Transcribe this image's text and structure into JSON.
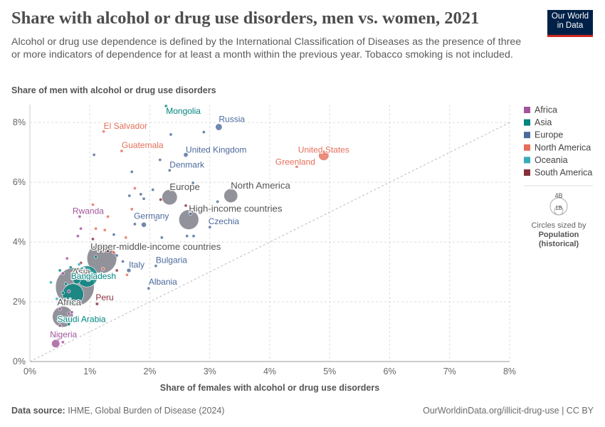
{
  "header": {
    "title": "Share with alcohol or drug use disorders, men vs. women, 2021",
    "subtitle": "Alcohol or drug use dependence is defined by the International Classification of Diseases as the presence of three or more indicators of dependence for at least a month within the previous year. Tobacco smoking is not included.",
    "logo_line1": "Our World",
    "logo_line2": "in Data"
  },
  "footer": {
    "source_label": "Data source:",
    "source_text": "IHME, Global Burden of Disease (2024)",
    "url_text": "OurWorldinData.org/illicit-drug-use | CC BY"
  },
  "size_legend": {
    "big_label": "4B",
    "small_label": "1B",
    "caption": "Circles sized by",
    "variable_line1": "Population",
    "variable_line2": "(historical)"
  },
  "chart_data": {
    "type": "scatter",
    "xlabel": "Share of females with alcohol or drug use disorders",
    "ylabel": "Share of men with alcohol or drug use disorders",
    "xlim": [
      0,
      8
    ],
    "ylim": [
      0,
      8.6
    ],
    "x_ticks": [
      0,
      1,
      2,
      3,
      4,
      5,
      6,
      7,
      8
    ],
    "x_tick_labels": [
      "0%",
      "1%",
      "2%",
      "3%",
      "4%",
      "5%",
      "6%",
      "7%",
      "8%"
    ],
    "y_ticks": [
      0,
      2,
      4,
      6,
      8
    ],
    "y_tick_labels": [
      "0%",
      "2%",
      "4%",
      "6%",
      "8%"
    ],
    "grid": true,
    "diagonal_reference_line": true,
    "legend_position": "right",
    "legend": [
      {
        "name": "Africa",
        "color": "#a2559c"
      },
      {
        "name": "Asia",
        "color": "#00847e"
      },
      {
        "name": "Europe",
        "color": "#4c6a9c"
      },
      {
        "name": "North America",
        "color": "#e56e5a"
      },
      {
        "name": "Oceania",
        "color": "#38aaba"
      },
      {
        "name": "South America",
        "color": "#883039"
      }
    ],
    "aggregate_color": "#6d6d78",
    "points": [
      {
        "label": "Mongolia",
        "region": "Asia",
        "x": 2.27,
        "y": 8.55,
        "pop": 0.0034,
        "labeled": true
      },
      {
        "label": "Russia",
        "region": "Europe",
        "x": 3.15,
        "y": 7.85,
        "pop": 0.145,
        "labeled": true
      },
      {
        "label": "El Salvador",
        "region": "North America",
        "x": 1.23,
        "y": 7.7,
        "pop": 0.0063,
        "labeled": true
      },
      {
        "label": "Guatemala",
        "region": "North America",
        "x": 1.53,
        "y": 7.05,
        "pop": 0.018,
        "labeled": true
      },
      {
        "label": "United Kingdom",
        "region": "Europe",
        "x": 2.6,
        "y": 6.92,
        "pop": 0.067,
        "labeled": true
      },
      {
        "label": "United States",
        "region": "North America",
        "x": 4.9,
        "y": 6.9,
        "pop": 0.336,
        "labeled": true
      },
      {
        "label": "Greenland",
        "region": "North America",
        "x": 4.45,
        "y": 6.52,
        "pop": 6e-05,
        "labeled": true
      },
      {
        "label": "Denmark",
        "region": "Europe",
        "x": 2.33,
        "y": 6.4,
        "pop": 0.0059,
        "labeled": true
      },
      {
        "label": "Europe",
        "region": "aggregate",
        "x": 2.33,
        "y": 5.5,
        "pop": 0.745,
        "labeled": true
      },
      {
        "label": "North America",
        "region": "aggregate",
        "x": 3.35,
        "y": 5.55,
        "pop": 0.6,
        "labeled": true
      },
      {
        "label": "Rwanda",
        "region": "Africa",
        "x": 0.83,
        "y": 4.85,
        "pop": 0.0136,
        "labeled": true
      },
      {
        "label": "High-income countries",
        "region": "aggregate",
        "x": 2.65,
        "y": 4.75,
        "pop": 1.24,
        "labeled": true
      },
      {
        "label": "Germany",
        "region": "Europe",
        "x": 1.9,
        "y": 4.58,
        "pop": 0.083,
        "labeled": true
      },
      {
        "label": "Czechia",
        "region": "Europe",
        "x": 3.0,
        "y": 4.5,
        "pop": 0.0105,
        "labeled": true
      },
      {
        "label": "Upper-middle-income countries",
        "region": "aggregate",
        "x": 1.2,
        "y": 3.45,
        "pop": 2.8,
        "labeled": true
      },
      {
        "label": "Bulgaria",
        "region": "Europe",
        "x": 2.1,
        "y": 3.2,
        "pop": 0.0068,
        "labeled": true
      },
      {
        "label": "Italy",
        "region": "Europe",
        "x": 1.65,
        "y": 3.05,
        "pop": 0.059,
        "labeled": true
      },
      {
        "label": "Albania",
        "region": "Europe",
        "x": 1.98,
        "y": 2.45,
        "pop": 0.0028,
        "labeled": true
      },
      {
        "label": "Asia",
        "region": "aggregate",
        "x": 0.75,
        "y": 2.5,
        "pop": 4.69,
        "labeled": true
      },
      {
        "label": "Bangladesh",
        "region": "Asia",
        "x": 0.78,
        "y": 2.72,
        "pop": 0.169,
        "labeled": true
      },
      {
        "label": "Peru",
        "region": "South America",
        "x": 1.12,
        "y": 1.93,
        "pop": 0.034,
        "labeled": true
      },
      {
        "label": "Africa",
        "region": "aggregate",
        "x": 0.55,
        "y": 1.5,
        "pop": 1.39,
        "labeled": true
      },
      {
        "label": "Saudi Arabia",
        "region": "Asia",
        "x": 0.6,
        "y": 1.35,
        "pop": 0.036,
        "labeled": true
      },
      {
        "label": "Nigeria",
        "region": "Africa",
        "x": 0.43,
        "y": 0.6,
        "pop": 0.213,
        "labeled": true
      },
      {
        "label": "India",
        "region": "Asia",
        "x": 0.72,
        "y": 2.25,
        "pop": 1.41,
        "labeled": false
      },
      {
        "label": "China",
        "region": "Asia",
        "x": 0.95,
        "y": 2.85,
        "pop": 1.42,
        "labeled": false
      },
      {
        "label": "",
        "region": "Europe",
        "x": 2.35,
        "y": 7.6,
        "pop": 0.01,
        "labeled": false
      },
      {
        "label": "",
        "region": "Europe",
        "x": 2.9,
        "y": 7.68,
        "pop": 0.01,
        "labeled": false
      },
      {
        "label": "",
        "region": "Europe",
        "x": 1.07,
        "y": 6.92,
        "pop": 0.01,
        "labeled": false
      },
      {
        "label": "",
        "region": "Europe",
        "x": 2.17,
        "y": 6.75,
        "pop": 0.01,
        "labeled": false
      },
      {
        "label": "",
        "region": "Europe",
        "x": 1.7,
        "y": 6.35,
        "pop": 0.01,
        "labeled": false
      },
      {
        "label": "",
        "region": "Europe",
        "x": 2.72,
        "y": 5.98,
        "pop": 0.01,
        "labeled": false
      },
      {
        "label": "",
        "region": "Europe",
        "x": 2.05,
        "y": 5.75,
        "pop": 0.01,
        "labeled": false
      },
      {
        "label": "",
        "region": "Europe",
        "x": 1.85,
        "y": 5.6,
        "pop": 0.01,
        "labeled": false
      },
      {
        "label": "",
        "region": "Europe",
        "x": 1.9,
        "y": 5.45,
        "pop": 0.01,
        "labeled": false
      },
      {
        "label": "",
        "region": "Europe",
        "x": 1.66,
        "y": 5.55,
        "pop": 0.01,
        "labeled": false
      },
      {
        "label": "",
        "region": "South America",
        "x": 2.18,
        "y": 5.42,
        "pop": 0.01,
        "labeled": false
      },
      {
        "label": "",
        "region": "Europe",
        "x": 3.13,
        "y": 5.35,
        "pop": 0.01,
        "labeled": false
      },
      {
        "label": "",
        "region": "South America",
        "x": 2.6,
        "y": 5.22,
        "pop": 0.01,
        "labeled": false
      },
      {
        "label": "",
        "region": "Europe",
        "x": 2.68,
        "y": 4.95,
        "pop": 0.01,
        "labeled": false
      },
      {
        "label": "",
        "region": "Europe",
        "x": 1.75,
        "y": 4.6,
        "pop": 0.01,
        "labeled": false
      },
      {
        "label": "",
        "region": "Europe",
        "x": 2.1,
        "y": 4.75,
        "pop": 0.01,
        "labeled": false
      },
      {
        "label": "",
        "region": "Europe",
        "x": 2.73,
        "y": 4.2,
        "pop": 0.01,
        "labeled": false
      },
      {
        "label": "",
        "region": "Europe",
        "x": 2.62,
        "y": 4.2,
        "pop": 0.01,
        "labeled": false
      },
      {
        "label": "",
        "region": "Europe",
        "x": 2.2,
        "y": 4.15,
        "pop": 0.01,
        "labeled": false
      },
      {
        "label": "",
        "region": "Europe",
        "x": 1.4,
        "y": 4.25,
        "pop": 0.01,
        "labeled": false
      },
      {
        "label": "",
        "region": "Europe",
        "x": 1.45,
        "y": 3.55,
        "pop": 0.01,
        "labeled": false
      },
      {
        "label": "",
        "region": "Europe",
        "x": 1.55,
        "y": 3.35,
        "pop": 0.01,
        "labeled": false
      },
      {
        "label": "",
        "region": "Europe",
        "x": 2.03,
        "y": 2.75,
        "pop": 0.01,
        "labeled": false
      },
      {
        "label": "",
        "region": "North America",
        "x": 1.75,
        "y": 5.8,
        "pop": 0.005,
        "labeled": false
      },
      {
        "label": "",
        "region": "North America",
        "x": 1.7,
        "y": 5.1,
        "pop": 0.005,
        "labeled": false
      },
      {
        "label": "",
        "region": "North America",
        "x": 1.3,
        "y": 4.85,
        "pop": 0.005,
        "labeled": false
      },
      {
        "label": "",
        "region": "North America",
        "x": 1.1,
        "y": 4.45,
        "pop": 0.005,
        "labeled": false
      },
      {
        "label": "",
        "region": "North America",
        "x": 1.25,
        "y": 4.4,
        "pop": 0.005,
        "labeled": false
      },
      {
        "label": "",
        "region": "North America",
        "x": 1.05,
        "y": 5.25,
        "pop": 0.005,
        "labeled": false
      },
      {
        "label": "",
        "region": "North America",
        "x": 1.6,
        "y": 4.15,
        "pop": 0.005,
        "labeled": false
      },
      {
        "label": "",
        "region": "North America",
        "x": 1.4,
        "y": 3.65,
        "pop": 0.005,
        "labeled": false
      },
      {
        "label": "",
        "region": "North America",
        "x": 1.62,
        "y": 2.9,
        "pop": 0.005,
        "labeled": false
      },
      {
        "label": "",
        "region": "North America",
        "x": 1.22,
        "y": 3.1,
        "pop": 0.005,
        "labeled": false
      },
      {
        "label": "",
        "region": "South America",
        "x": 1.05,
        "y": 4.1,
        "pop": 0.01,
        "labeled": false
      },
      {
        "label": "",
        "region": "South America",
        "x": 1.3,
        "y": 3.7,
        "pop": 0.01,
        "labeled": false
      },
      {
        "label": "",
        "region": "South America",
        "x": 1.45,
        "y": 3.05,
        "pop": 0.01,
        "labeled": false
      },
      {
        "label": "",
        "region": "South America",
        "x": 0.85,
        "y": 3.3,
        "pop": 0.01,
        "labeled": false
      },
      {
        "label": "",
        "region": "Africa",
        "x": 0.85,
        "y": 4.45,
        "pop": 0.01,
        "labeled": false
      },
      {
        "label": "",
        "region": "Africa",
        "x": 0.8,
        "y": 4.2,
        "pop": 0.01,
        "labeled": false
      },
      {
        "label": "",
        "region": "Africa",
        "x": 0.62,
        "y": 3.45,
        "pop": 0.01,
        "labeled": false
      },
      {
        "label": "",
        "region": "Africa",
        "x": 0.55,
        "y": 2.95,
        "pop": 0.01,
        "labeled": false
      },
      {
        "label": "",
        "region": "Africa",
        "x": 0.65,
        "y": 2.35,
        "pop": 0.01,
        "labeled": false
      },
      {
        "label": "",
        "region": "Africa",
        "x": 0.6,
        "y": 2.05,
        "pop": 0.01,
        "labeled": false
      },
      {
        "label": "",
        "region": "Africa",
        "x": 0.5,
        "y": 1.75,
        "pop": 0.01,
        "labeled": false
      },
      {
        "label": "",
        "region": "Africa",
        "x": 0.65,
        "y": 1.6,
        "pop": 0.01,
        "labeled": false
      },
      {
        "label": "",
        "region": "Africa",
        "x": 0.5,
        "y": 1.2,
        "pop": 0.01,
        "labeled": false
      },
      {
        "label": "",
        "region": "Africa",
        "x": 0.45,
        "y": 1.0,
        "pop": 0.01,
        "labeled": false
      },
      {
        "label": "",
        "region": "Africa",
        "x": 0.48,
        "y": 0.75,
        "pop": 0.01,
        "labeled": false
      },
      {
        "label": "",
        "region": "Africa",
        "x": 0.55,
        "y": 0.65,
        "pop": 0.01,
        "labeled": false
      },
      {
        "label": "",
        "region": "Africa",
        "x": 0.7,
        "y": 1.65,
        "pop": 0.01,
        "labeled": false
      },
      {
        "label": "",
        "region": "Asia",
        "x": 0.5,
        "y": 3.05,
        "pop": 0.03,
        "labeled": false
      },
      {
        "label": "",
        "region": "Asia",
        "x": 0.68,
        "y": 3.15,
        "pop": 0.02,
        "labeled": false
      },
      {
        "label": "",
        "region": "Asia",
        "x": 0.9,
        "y": 2.9,
        "pop": 0.03,
        "labeled": false
      },
      {
        "label": "",
        "region": "Asia",
        "x": 0.6,
        "y": 2.6,
        "pop": 0.03,
        "labeled": false
      },
      {
        "label": "",
        "region": "Asia",
        "x": 0.55,
        "y": 2.3,
        "pop": 0.02,
        "labeled": false
      },
      {
        "label": "",
        "region": "Asia",
        "x": 0.65,
        "y": 1.25,
        "pop": 0.01,
        "labeled": false
      },
      {
        "label": "",
        "region": "Asia",
        "x": 0.4,
        "y": 0.85,
        "pop": 0.005,
        "labeled": false
      },
      {
        "label": "",
        "region": "Asia",
        "x": 1.1,
        "y": 3.5,
        "pop": 0.02,
        "labeled": false
      },
      {
        "label": "",
        "region": "Oceania",
        "x": 0.35,
        "y": 2.65,
        "pop": 0.005,
        "labeled": false
      },
      {
        "label": "",
        "region": "Oceania",
        "x": 0.45,
        "y": 2.1,
        "pop": 0.005,
        "labeled": false
      },
      {
        "label": "",
        "region": "Oceania",
        "x": 0.82,
        "y": 3.25,
        "pop": 0.005,
        "labeled": false
      }
    ]
  }
}
